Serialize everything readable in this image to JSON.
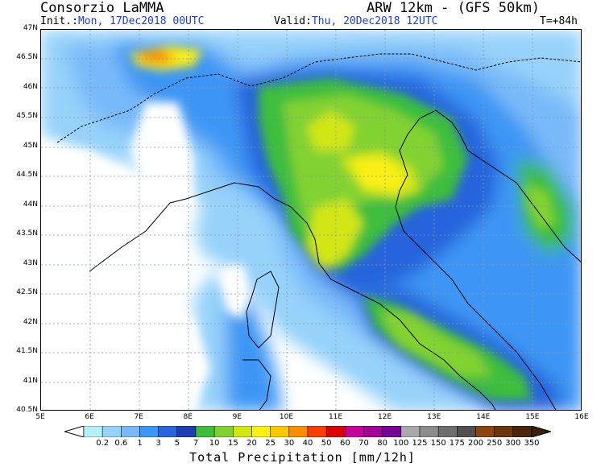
{
  "header": {
    "title_left": "Consorzio LaMMA",
    "title_right": "ARW 12km - (GFS 50km)",
    "init_label": "Init.:",
    "init_value": "Mon, 17Dec2018 00UTC",
    "valid_label": "Valid:",
    "valid_value": "Thu, 20Dec2018 12UTC",
    "lead_time": "T=+84h"
  },
  "map": {
    "lat_labels": [
      "47N",
      "46.5N",
      "46N",
      "45.5N",
      "45N",
      "44.5N",
      "44N",
      "43.5N",
      "43N",
      "42.5N",
      "42N",
      "41.5N",
      "41N",
      "40.5N"
    ],
    "lon_labels": [
      "5E",
      "6E",
      "7E",
      "8E",
      "9E",
      "10E",
      "11E",
      "12E",
      "13E",
      "14E",
      "15E",
      "16E"
    ],
    "gridlines": "dotted",
    "background_colors": {
      "land_nodata": "#ffffff",
      "sea": "#ffffff"
    }
  },
  "colorbar": {
    "title": "Total Precipitation [mm/12h]",
    "labels": [
      "0.2",
      "0.6",
      "1",
      "3",
      "5",
      "7",
      "10",
      "15",
      "20",
      "25",
      "30",
      "40",
      "50",
      "60",
      "70",
      "80",
      "100",
      "125",
      "150",
      "175",
      "200",
      "250",
      "300",
      "350"
    ],
    "colors": [
      "#b4f0fa",
      "#96d2fa",
      "#78b9fa",
      "#3c96f5",
      "#2864dc",
      "#1e3cb4",
      "#3cbe3c",
      "#82d232",
      "#d2e614",
      "#faf014",
      "#fac800",
      "#fa8c00",
      "#fa3c00",
      "#dc0000",
      "#c8009b",
      "#a00096",
      "#780096",
      "#aaaaaa",
      "#8c8c8c",
      "#6e6e6e",
      "#505050",
      "#8b4513",
      "#6b3510",
      "#4a250b"
    ]
  }
}
